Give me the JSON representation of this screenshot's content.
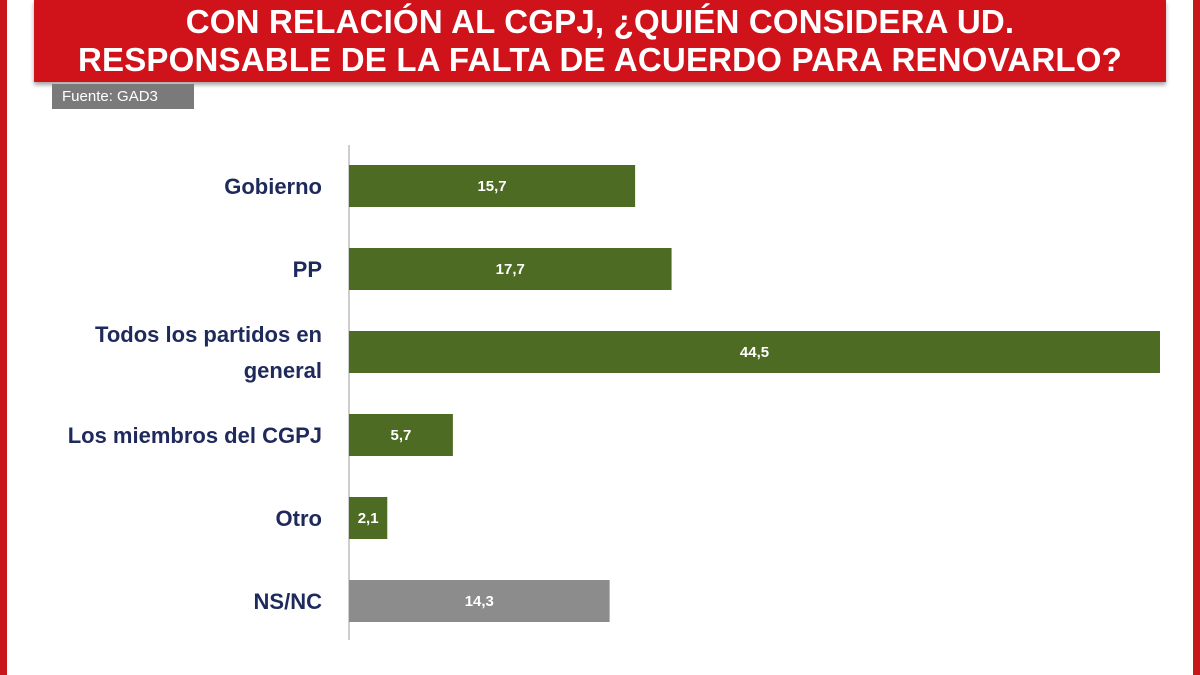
{
  "header": {
    "title_line1": "CON RELACIÓN AL CGPJ, ¿QUIÉN CONSIDERA UD.",
    "title_line2": "RESPONSABLE DE LA FALTA DE ACUERDO PARA RENOVARLO?"
  },
  "source": "Fuente: GAD3",
  "colors": {
    "brand_red": "#d0121b",
    "bar_green": "#4e6b24",
    "bar_grey": "#8c8c8c",
    "label_navy": "#1f2a5c"
  },
  "chart_data": {
    "type": "bar",
    "orientation": "horizontal",
    "title": "CON RELACIÓN AL CGPJ, ¿QUIÉN CONSIDERA UD. RESPONSABLE DE LA FALTA DE ACUERDO PARA RENOVARLO?",
    "categories": [
      "Gobierno",
      "PP",
      "Todos los partidos en general",
      "Los miembros del CGPJ",
      "Otro",
      "NS/NC"
    ],
    "category_lines": [
      [
        "Gobierno"
      ],
      [
        "PP"
      ],
      [
        "Todos los partidos en",
        "general"
      ],
      [
        "Los miembros del CGPJ"
      ],
      [
        "Otro"
      ],
      [
        "NS/NC"
      ]
    ],
    "values": [
      15.7,
      17.7,
      44.5,
      5.7,
      2.1,
      14.3
    ],
    "value_labels": [
      "15,7",
      "17,7",
      "44,5",
      "5,7",
      "2,1",
      "14,3"
    ],
    "bar_colors": [
      "#4e6b24",
      "#4e6b24",
      "#4e6b24",
      "#4e6b24",
      "#4e6b24",
      "#8c8c8c"
    ],
    "xlim": [
      0,
      44.5
    ],
    "grid": false,
    "legend": "none"
  }
}
